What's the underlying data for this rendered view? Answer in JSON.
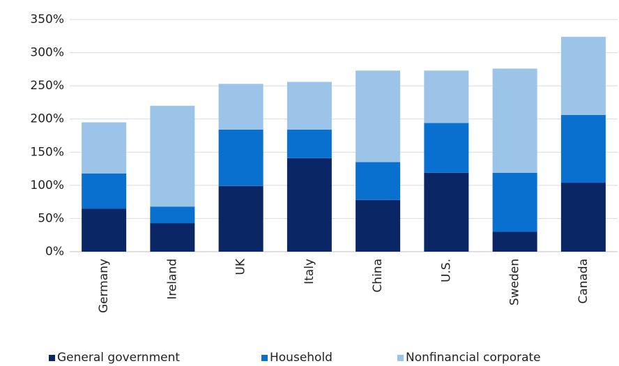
{
  "chart_data": {
    "type": "stacked_bar",
    "categories": [
      "Germany",
      "Ireland",
      "UK",
      "Italy",
      "China",
      "U.S.",
      "Sweden",
      "Canada"
    ],
    "series": [
      {
        "name": "General government",
        "color": "#0b2664",
        "values": [
          65,
          43,
          99,
          141,
          78,
          119,
          30,
          104
        ]
      },
      {
        "name": "Household",
        "color": "#0a70cf",
        "values": [
          53,
          25,
          85,
          43,
          57,
          75,
          89,
          102
        ]
      },
      {
        "name": "Nonfinancial corporate",
        "color": "#9cc3e8",
        "values": [
          77,
          152,
          69,
          72,
          138,
          79,
          157,
          118
        ]
      }
    ],
    "ylim": [
      0,
      350
    ],
    "yticks": [
      {
        "value": 0,
        "label": "0%"
      },
      {
        "value": 50,
        "label": "50%"
      },
      {
        "value": 100,
        "label": "100%"
      },
      {
        "value": 150,
        "label": "150%"
      },
      {
        "value": 200,
        "label": "200%"
      },
      {
        "value": 250,
        "label": "250%"
      },
      {
        "value": 300,
        "label": "300%"
      },
      {
        "value": 350,
        "label": "350%"
      }
    ],
    "grid": true,
    "legend": "bottom"
  }
}
